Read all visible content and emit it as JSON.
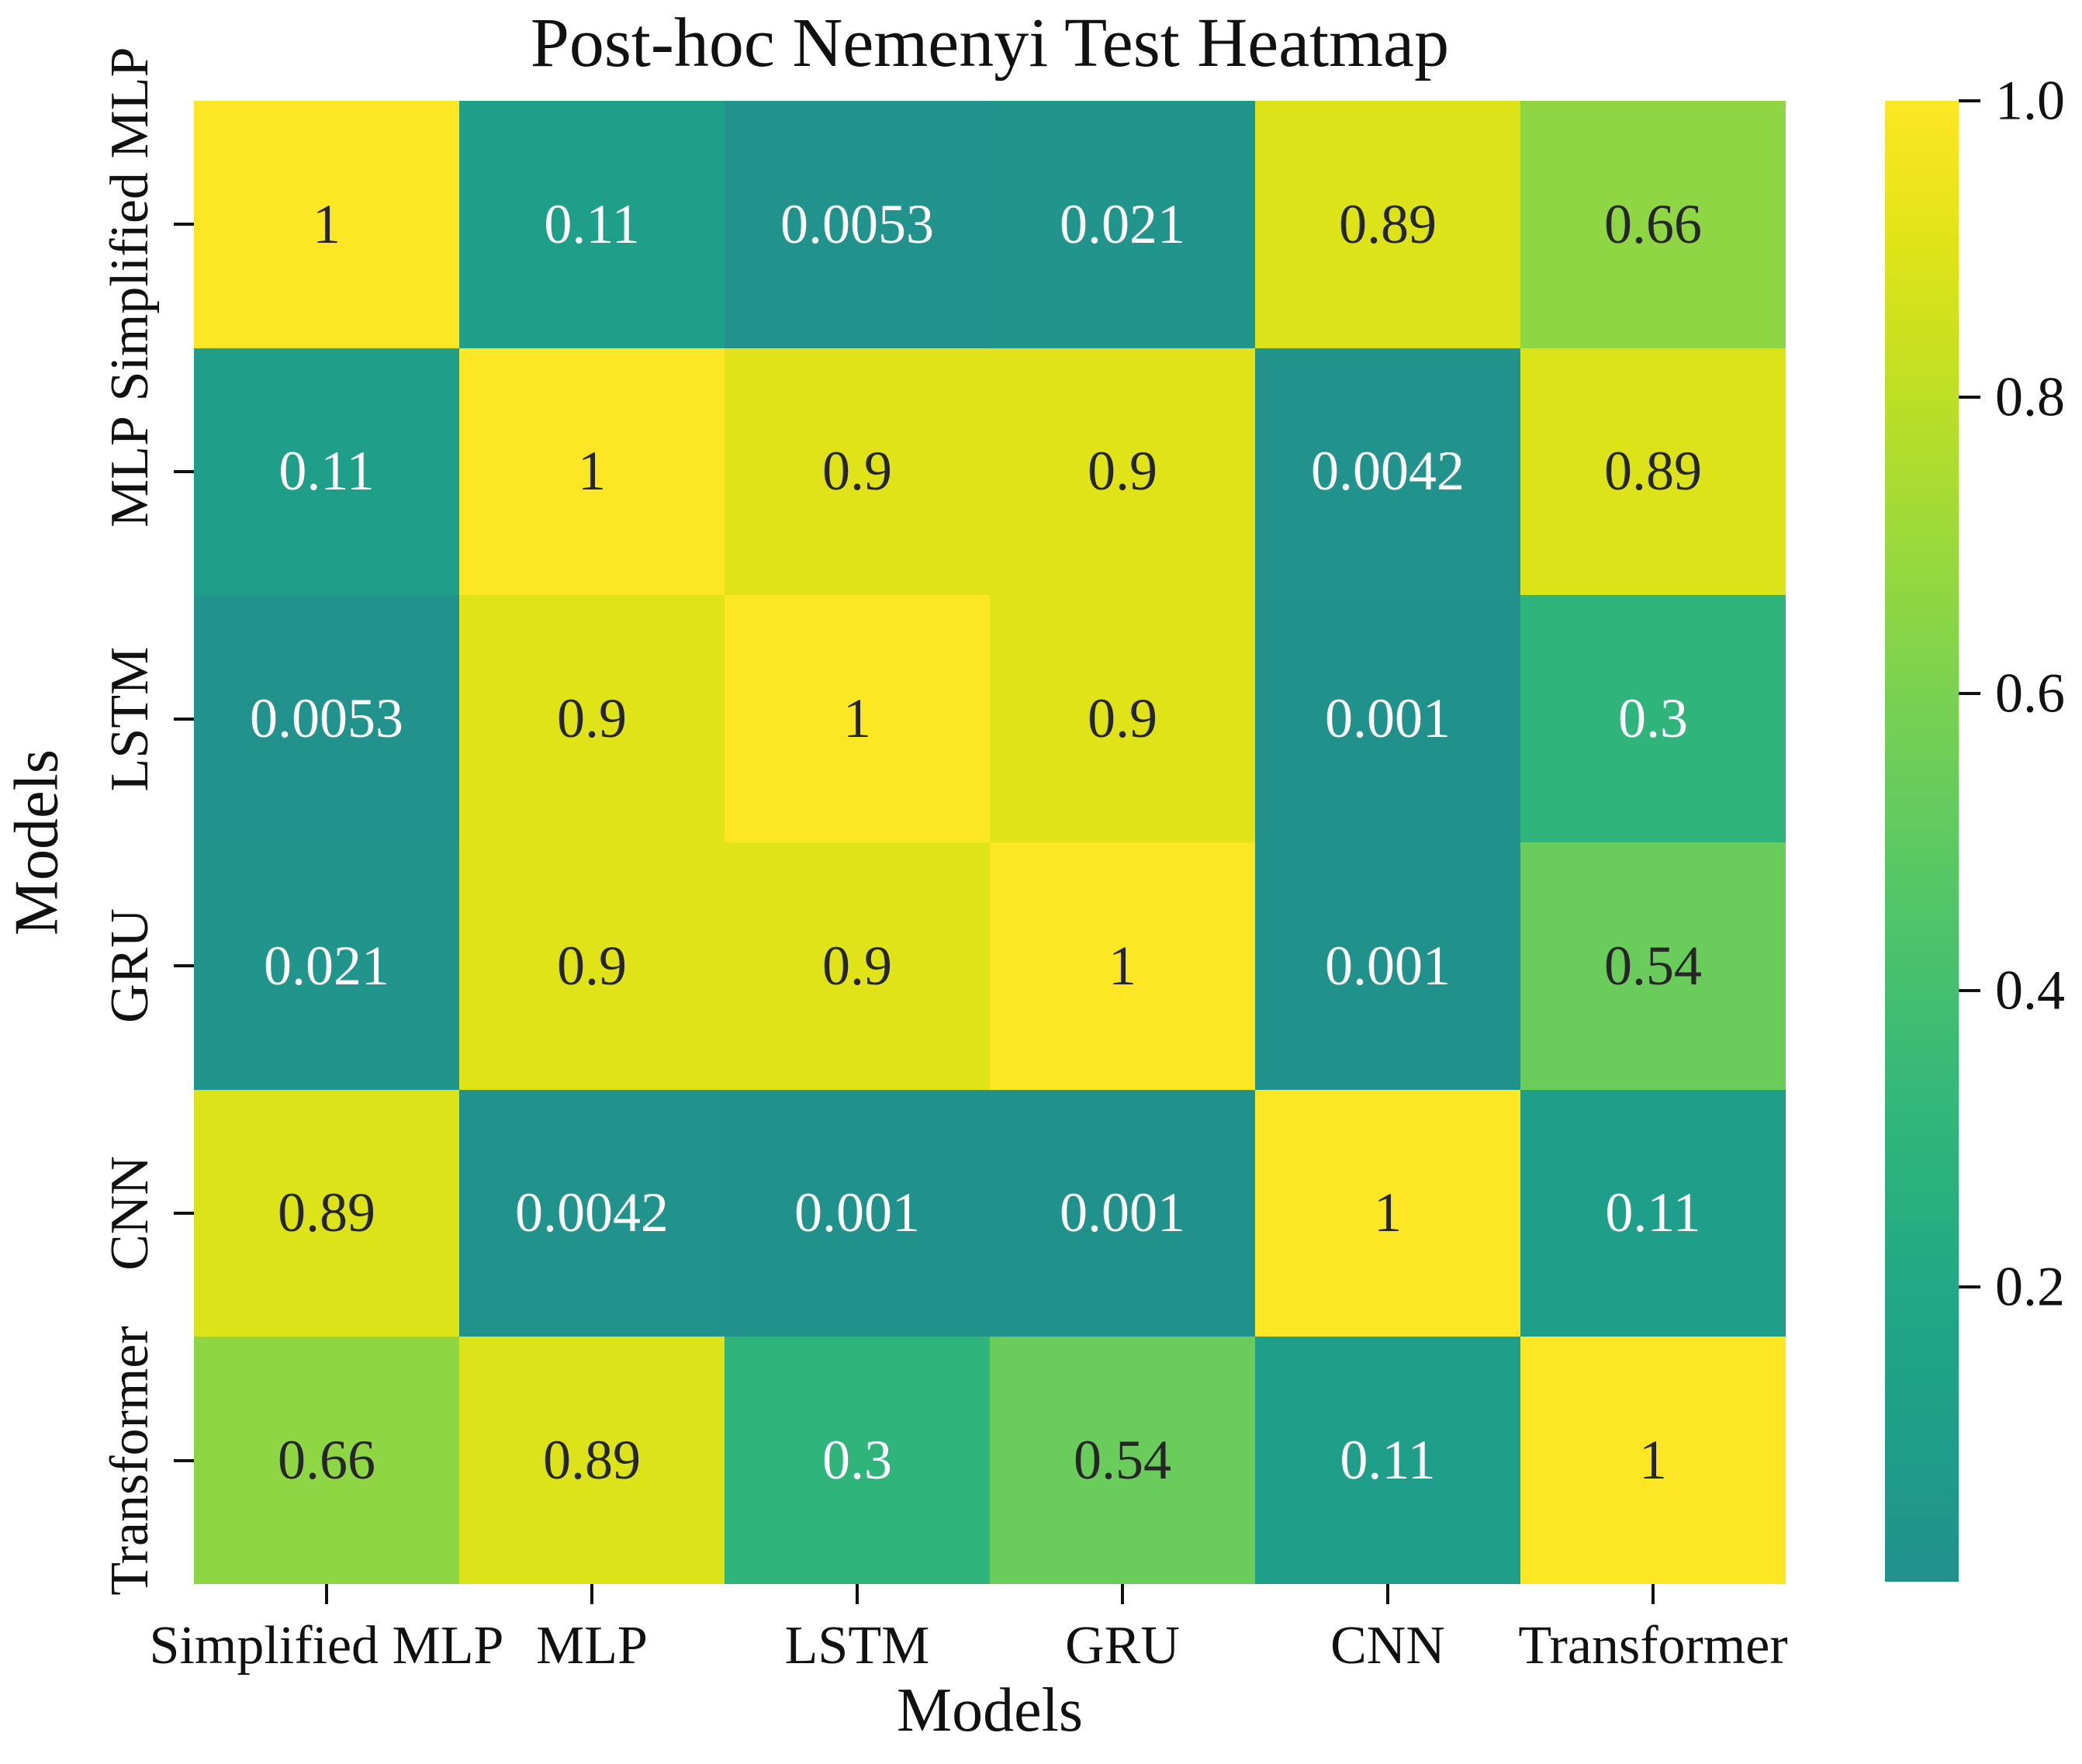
{
  "title": "Post-hoc Nemenyi Test Heatmap",
  "axes": {
    "x_label": "Models",
    "y_label": "Models"
  },
  "colorbar": {
    "tick_labels": [
      "1.0",
      "0.8",
      "0.6",
      "0.4",
      "0.2"
    ],
    "tick_values": [
      1.0,
      0.8,
      0.6,
      0.4,
      0.2
    ],
    "vmin": 0.001,
    "vmax": 1.0,
    "position": "right"
  },
  "colormap": {
    "name": "viridis-upper-half",
    "stops": [
      "#21918c",
      "#1f9e89",
      "#22a884",
      "#2fb47c",
      "#44bf70",
      "#5ec962",
      "#7ad151",
      "#9bd93c",
      "#bddf26",
      "#dfe318",
      "#fde725"
    ],
    "top_color": "#fde725",
    "bottom_color": "#21918c"
  },
  "text_colors": {
    "on_dark": "#ffffff",
    "on_light": "#262626"
  },
  "chart_data": {
    "type": "heatmap",
    "title": "Post-hoc Nemenyi Test Heatmap",
    "xlabel": "Models",
    "ylabel": "Models",
    "x_categories": [
      "Simplified MLP",
      "MLP",
      "LSTM",
      "GRU",
      "CNN",
      "Transformer"
    ],
    "y_categories": [
      "Simplified MLP",
      "MLP",
      "LSTM",
      "GRU",
      "CNN",
      "Transformer"
    ],
    "values": [
      [
        1,
        0.11,
        0.0053,
        0.021,
        0.89,
        0.66
      ],
      [
        0.11,
        1,
        0.9,
        0.9,
        0.0042,
        0.89
      ],
      [
        0.0053,
        0.9,
        1,
        0.9,
        0.001,
        0.3
      ],
      [
        0.021,
        0.9,
        0.9,
        1,
        0.001,
        0.54
      ],
      [
        0.89,
        0.0042,
        0.001,
        0.001,
        1,
        0.11
      ],
      [
        0.66,
        0.89,
        0.3,
        0.54,
        0.11,
        1
      ]
    ],
    "annotations": [
      [
        "1",
        "0.11",
        "0.0053",
        "0.021",
        "0.89",
        "0.66"
      ],
      [
        "0.11",
        "1",
        "0.9",
        "0.9",
        "0.0042",
        "0.89"
      ],
      [
        "0.0053",
        "0.9",
        "1",
        "0.9",
        "0.001",
        "0.3"
      ],
      [
        "0.021",
        "0.9",
        "0.9",
        "1",
        "0.001",
        "0.54"
      ],
      [
        "0.89",
        "0.0042",
        "0.001",
        "0.001",
        "1",
        "0.11"
      ],
      [
        "0.66",
        "0.89",
        "0.3",
        "0.54",
        "0.11",
        "1"
      ]
    ],
    "color_range": [
      0.001,
      1.0
    ],
    "grid": false,
    "legend_position": "right-colorbar"
  }
}
